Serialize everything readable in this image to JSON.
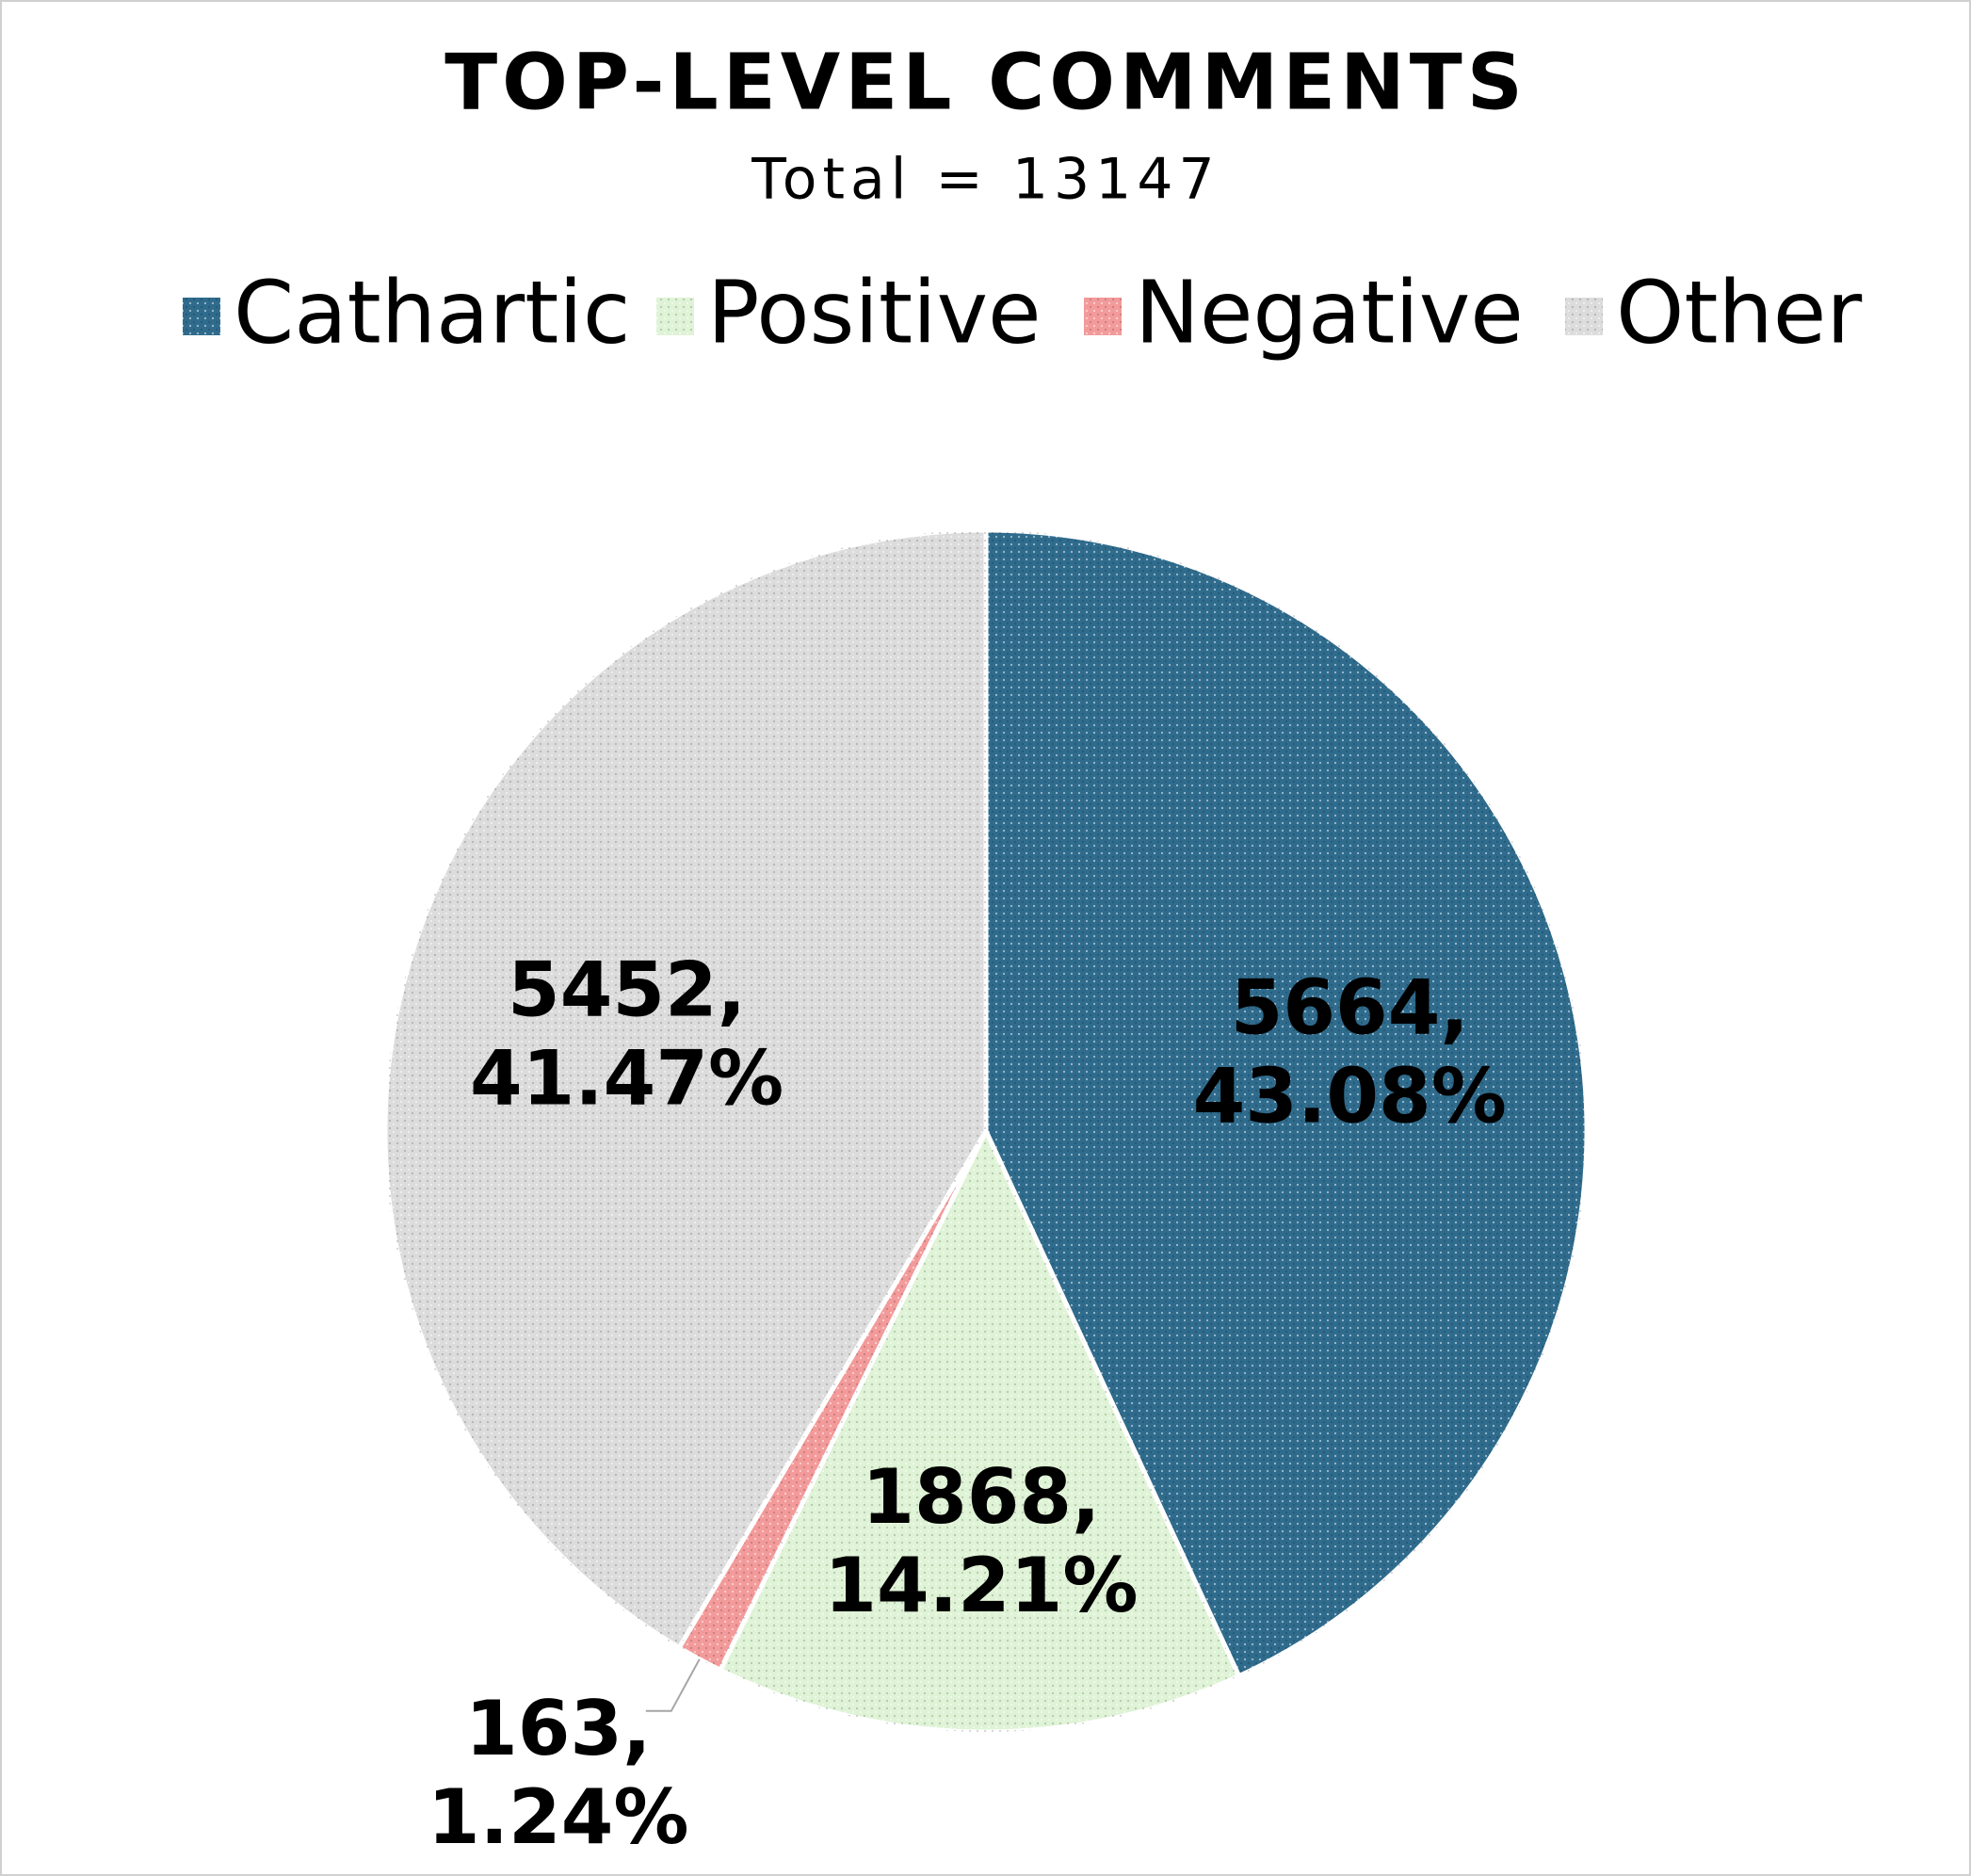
{
  "chart_data": {
    "type": "pie",
    "title": "TOP-LEVEL COMMENTS",
    "subtitle": "Total = 13147",
    "categories": [
      "Cathartic",
      "Positive",
      "Negative",
      "Other"
    ],
    "values": [
      5664,
      1868,
      163,
      5452
    ],
    "value_labels": [
      [
        "5664,",
        "43.08%"
      ],
      [
        "1868,",
        "14.21%"
      ],
      [
        "163,",
        "1.24%"
      ],
      [
        "5452,",
        "41.47%"
      ]
    ],
    "colors": [
      "#2f6b8c",
      "#dff3d6",
      "#f39a9a",
      "#dcdcdc"
    ],
    "legend": "top"
  }
}
